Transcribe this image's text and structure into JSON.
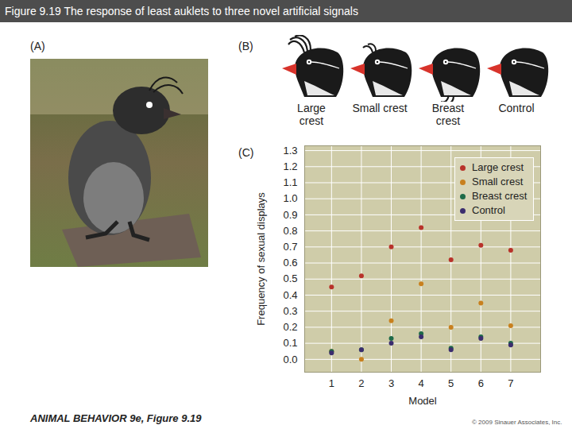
{
  "header": {
    "title": "Figure 9.19 The response of least auklets to three novel artificial signals"
  },
  "panels": {
    "A": {
      "label": "(A)"
    },
    "B": {
      "label": "(B)",
      "models": [
        "Large crest",
        "Small crest",
        "Breast crest",
        "Control"
      ]
    },
    "C": {
      "label": "(C)"
    }
  },
  "chart_data": {
    "type": "scatter",
    "xlabel": "Model",
    "ylabel": "Frequency of sexual displays",
    "x": [
      1,
      2,
      3,
      4,
      5,
      6,
      7
    ],
    "xlim": [
      0.1,
      8.0
    ],
    "xticks": [
      1,
      2,
      3,
      4,
      5,
      6,
      7
    ],
    "ylim": [
      -0.08,
      1.33
    ],
    "yticks": [
      {
        "value": 0,
        "label": "0.0"
      },
      0.1,
      0.2,
      0.3,
      0.4,
      0.5,
      0.6,
      0.7,
      0.8,
      0.9,
      {
        "value": 1,
        "label": "1.0"
      },
      1.1,
      1.2,
      1.3
    ],
    "grid": true,
    "legend": "top-right",
    "series": [
      {
        "name": "Large crest",
        "color": "#b8322a",
        "marker": "circle",
        "values": [
          0.45,
          0.52,
          0.7,
          0.82,
          0.62,
          0.71,
          0.68
        ]
      },
      {
        "name": "Small crest",
        "color": "#c8801e",
        "marker": "circle",
        "values": [
          0.05,
          0.0,
          0.24,
          0.47,
          0.2,
          0.35,
          0.21
        ]
      },
      {
        "name": "Breast crest",
        "color": "#1e6a48",
        "marker": "circle",
        "values": [
          0.05,
          0.06,
          0.13,
          0.16,
          0.07,
          0.14,
          0.1
        ]
      },
      {
        "name": "Control",
        "color": "#3b2d6e",
        "marker": "circle",
        "values": [
          0.04,
          0.06,
          0.1,
          0.14,
          0.06,
          0.13,
          0.09
        ]
      }
    ]
  },
  "footer": {
    "caption": "ANIMAL BEHAVIOR 9e, Figure 9.19",
    "copyright": "© 2009 Sinauer Associates, Inc."
  }
}
